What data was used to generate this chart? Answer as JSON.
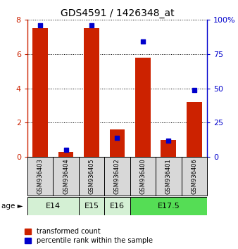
{
  "title": "GDS4591 / 1426348_at",
  "samples": [
    "GSM936403",
    "GSM936404",
    "GSM936405",
    "GSM936402",
    "GSM936400",
    "GSM936401",
    "GSM936406"
  ],
  "red_values": [
    7.5,
    0.3,
    7.5,
    1.6,
    5.8,
    1.0,
    3.2
  ],
  "blue_values": [
    96,
    5,
    96,
    14,
    84,
    12,
    49
  ],
  "age_groups": [
    {
      "label": "E14",
      "span": [
        0,
        1
      ],
      "color": "#d4f0d4"
    },
    {
      "label": "E15",
      "span": [
        2,
        2
      ],
      "color": "#d4f0d4"
    },
    {
      "label": "E16",
      "span": [
        3,
        3
      ],
      "color": "#d4f0d4"
    },
    {
      "label": "E17.5",
      "span": [
        4,
        6
      ],
      "color": "#55dd55"
    }
  ],
  "ylim_left": [
    0,
    8
  ],
  "ylim_right": [
    0,
    100
  ],
  "yticks_left": [
    0,
    2,
    4,
    6,
    8
  ],
  "yticks_right": [
    0,
    25,
    50,
    75,
    100
  ],
  "left_color": "#cc2200",
  "right_color": "#0000cc",
  "bar_width": 0.6,
  "legend_red": "transformed count",
  "legend_blue": "percentile rank within the sample",
  "bg_color": "#d8d8d8"
}
